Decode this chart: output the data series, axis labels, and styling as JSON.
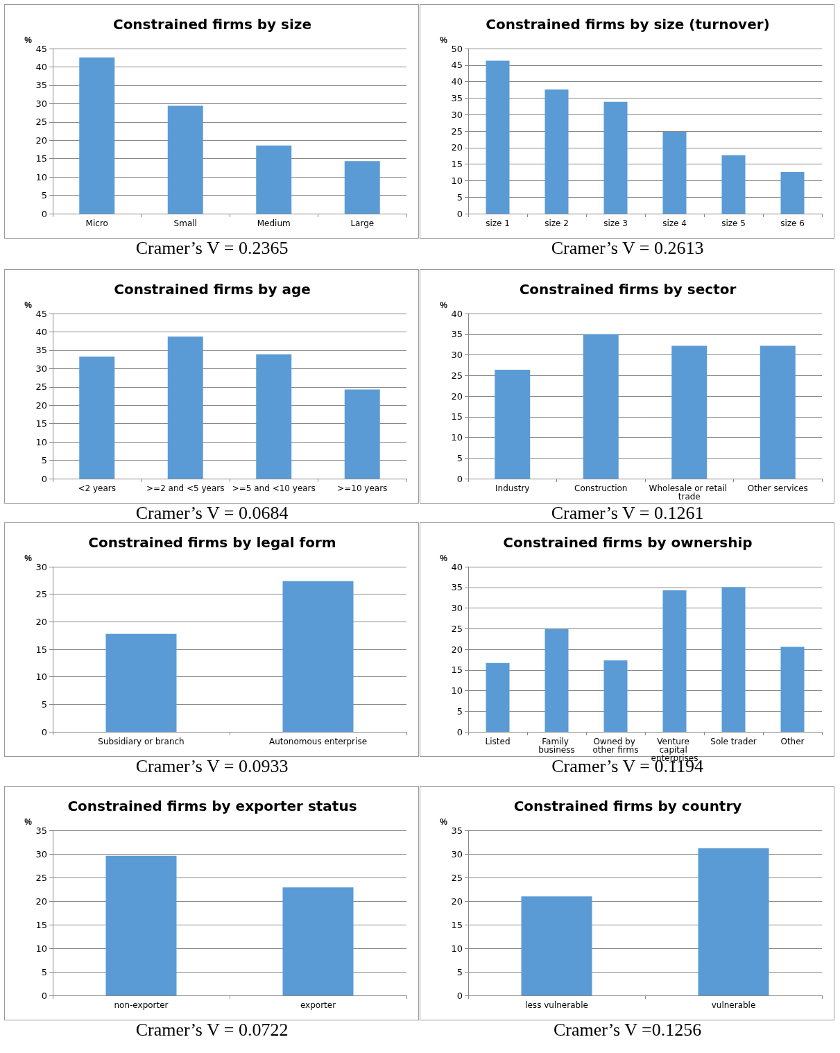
{
  "chart_data": [
    {
      "type": "bar",
      "title": "Constrained firms by size",
      "ylabel": "%",
      "categories": [
        "Micro",
        "Small",
        "Medium",
        "Large"
      ],
      "values": [
        42.6,
        29.4,
        18.6,
        14.3
      ],
      "color": "#5b9bd5",
      "ylim": [
        0,
        45
      ],
      "yticks": [
        0,
        5,
        10,
        15,
        20,
        25,
        30,
        35,
        40,
        45
      ],
      "grid": "y",
      "annotations": [
        "Cramer’s V = 0.2365"
      ]
    },
    {
      "type": "bar",
      "title": "Constrained firms by size (turnover)",
      "ylabel": "%",
      "categories": [
        "size 1",
        "size 2",
        "size 3",
        "size 4",
        "size 5",
        "size 6"
      ],
      "values": [
        46.3,
        37.6,
        33.9,
        24.8,
        17.7,
        12.6
      ],
      "color": "#5b9bd5",
      "ylim": [
        0,
        50
      ],
      "yticks": [
        0,
        5,
        10,
        15,
        20,
        25,
        30,
        35,
        40,
        45,
        50
      ],
      "grid": "y",
      "annotations": [
        "Cramer’s V = 0.2613"
      ]
    },
    {
      "type": "bar",
      "title": "Constrained firms by age",
      "ylabel": "%",
      "categories": [
        "<2 years",
        ">=2 and <5 years",
        ">=5 and <10 years",
        ">=10 years"
      ],
      "values": [
        33.3,
        38.7,
        33.9,
        24.3
      ],
      "color": "#5b9bd5",
      "ylim": [
        0,
        45
      ],
      "yticks": [
        0,
        5,
        10,
        15,
        20,
        25,
        30,
        35,
        40,
        45
      ],
      "grid": "y",
      "annotations": [
        "Cramer’s V = 0.0684"
      ]
    },
    {
      "type": "bar",
      "title": "Constrained firms by sector",
      "ylabel": "%",
      "categories": [
        "Industry",
        "Construction",
        "Wholesale or retail trade",
        "Other services"
      ],
      "values": [
        26.4,
        35.0,
        32.2,
        32.2
      ],
      "color": "#5b9bd5",
      "ylim": [
        0,
        40
      ],
      "yticks": [
        0,
        5,
        10,
        15,
        20,
        25,
        30,
        35,
        40
      ],
      "grid": "y",
      "annotations": [
        "Cramer’s V = 0.1261"
      ]
    },
    {
      "type": "bar",
      "title": "Constrained firms by legal form",
      "ylabel": "%",
      "categories": [
        "Subsidiary or branch",
        "Autonomous enterprise"
      ],
      "values": [
        17.8,
        27.4
      ],
      "color": "#5b9bd5",
      "ylim": [
        0,
        30
      ],
      "yticks": [
        0,
        5,
        10,
        15,
        20,
        25,
        30
      ],
      "grid": "y",
      "annotations": [
        "Cramer’s V = 0.0933"
      ]
    },
    {
      "type": "bar",
      "title": "Constrained firms by ownership",
      "ylabel": "%",
      "categories": [
        "Listed",
        "Family business",
        "Owned by other firms",
        "Venture capital enterprises",
        "Sole trader",
        "Other"
      ],
      "values": [
        16.7,
        24.9,
        17.3,
        34.3,
        35.1,
        20.6
      ],
      "color": "#5b9bd5",
      "ylim": [
        0,
        40
      ],
      "yticks": [
        0,
        5,
        10,
        15,
        20,
        25,
        30,
        35,
        40
      ],
      "grid": "y",
      "annotations": [
        "Cramer’s V = 0.1194"
      ]
    },
    {
      "type": "bar",
      "title": "Constrained firms by exporter status",
      "ylabel": "%",
      "categories": [
        "non-exporter",
        "exporter"
      ],
      "values": [
        29.6,
        22.9
      ],
      "color": "#5b9bd5",
      "ylim": [
        0,
        35
      ],
      "yticks": [
        0,
        5,
        10,
        15,
        20,
        25,
        30,
        35
      ],
      "grid": "y",
      "annotations": [
        "Cramer’s V = 0.0722"
      ]
    },
    {
      "type": "bar",
      "title": "Constrained firms by country",
      "ylabel": "%",
      "categories": [
        "less vulnerable",
        "vulnerable"
      ],
      "values": [
        21.0,
        31.2
      ],
      "color": "#5b9bd5",
      "ylim": [
        0,
        35
      ],
      "yticks": [
        0,
        5,
        10,
        15,
        20,
        25,
        30,
        35
      ],
      "grid": "y",
      "annotations": [
        "Cramer’s V =0.1256"
      ]
    }
  ]
}
